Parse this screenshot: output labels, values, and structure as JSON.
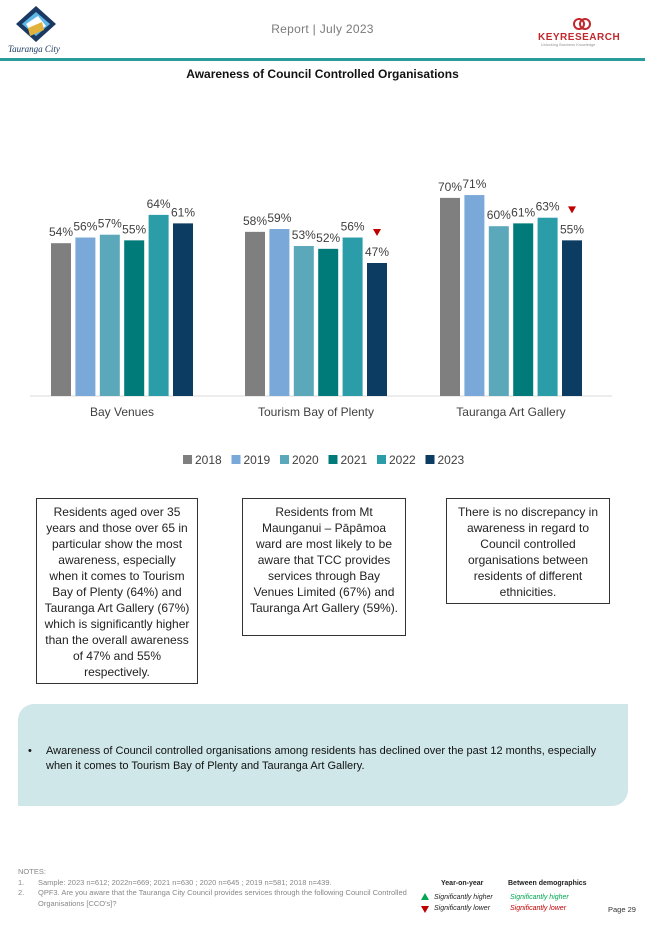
{
  "header": {
    "report_label": "Report | July 2023",
    "logo_left_text": "Tauranga City",
    "logo_right_text": "KEYRESEARCH",
    "logo_right_sub": "Unlocking Business Knowledge"
  },
  "colors": {
    "2018": "#7f7f7f",
    "2019": "#7aa8d8",
    "2020": "#5ba8bb",
    "2021": "#007b79",
    "2022": "#2a9da8",
    "2023": "#0d3c63",
    "accent_teal": "#2a9d9b",
    "down_arrow": "#c00000",
    "up_arrow": "#00a650"
  },
  "chart_data": {
    "type": "bar",
    "title": "Awareness of Council Controlled Organisations",
    "categories": [
      "Bay Venues",
      "Tourism Bay of Plenty",
      "Tauranga Art Gallery"
    ],
    "series": [
      {
        "name": "2018",
        "values": [
          54,
          58,
          70
        ],
        "labels": [
          "54%",
          "58%",
          "70%"
        ]
      },
      {
        "name": "2019",
        "values": [
          56,
          59,
          71
        ],
        "labels": [
          "56%",
          "59%",
          "71%"
        ]
      },
      {
        "name": "2020",
        "values": [
          57,
          53,
          60
        ],
        "labels": [
          "57%",
          "53%",
          "60%"
        ]
      },
      {
        "name": "2021",
        "values": [
          55,
          52,
          61
        ],
        "labels": [
          "55%",
          "52%",
          "61%"
        ]
      },
      {
        "name": "2022",
        "values": [
          64,
          56,
          63
        ],
        "labels": [
          "64%",
          "56%",
          "63%"
        ]
      },
      {
        "name": "2023",
        "values": [
          61,
          47,
          55
        ],
        "labels": [
          "61%",
          "47%",
          "55%"
        ]
      }
    ],
    "significantly_lower": [
      {
        "category": "Tourism Bay of Plenty",
        "series": "2023"
      },
      {
        "category": "Tauranga Art Gallery",
        "series": "2023"
      }
    ],
    "ylim": [
      0,
      100
    ],
    "grid": false,
    "legend_position": "bottom"
  },
  "callouts": [
    "Residents aged over 35 years and those over 65 in particular show the most awareness, especially when it comes to Tourism Bay of Plenty (64%) and Tauranga Art Gallery (67%) which is significantly higher than the overall awareness of 47% and 55% respectively.",
    "Residents from Mt Maunganui – Pāpāmoa ward are most likely to be aware that TCC provides services through Bay Venues Limited (67%) and Tauranga Art Gallery (59%).",
    "There is no discrepancy in awareness in regard to Council controlled organisations between residents of different ethnicities."
  ],
  "summary": {
    "bullet": "•",
    "text": "Awareness of Council controlled organisations among residents has declined over the past 12 months, especially when it comes to Tourism Bay of Plenty and Tauranga Art Gallery."
  },
  "notes": {
    "heading": "NOTES:",
    "items": [
      {
        "num": "1.",
        "text": "Sample: 2023 n=612; 2022n=669; 2021 n=630 ; 2020 n=645 ; 2019 n=581; 2018 n=439."
      },
      {
        "num": "2.",
        "text": "QPF3. Are you aware that the Tauranga City Council provides services through the following Council Controlled Organisations [CCO's]?"
      }
    ]
  },
  "significance_legend": {
    "year_heading": "Year-on-year",
    "demo_heading": "Between demographics",
    "higher": "Significantly higher",
    "lower": "Significantly lower"
  },
  "page": "Page 29"
}
